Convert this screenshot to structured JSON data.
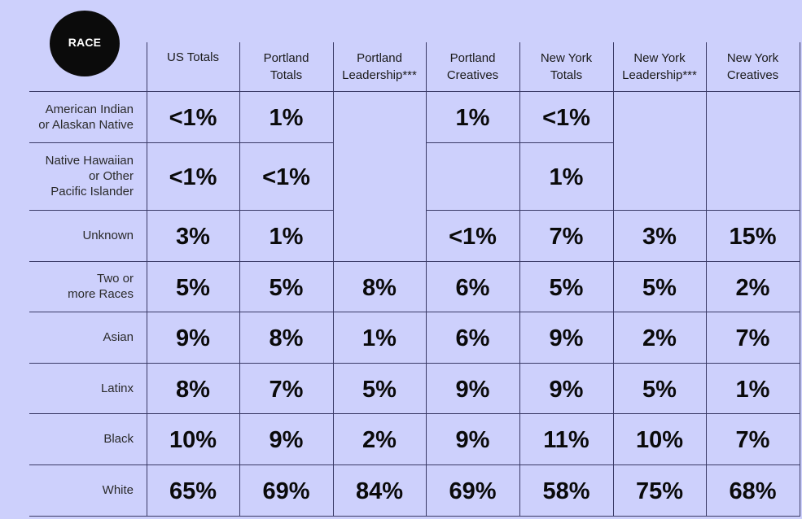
{
  "badge": {
    "label": "RACE"
  },
  "columns": [
    {
      "line1": "US Totals",
      "line2": ""
    },
    {
      "line1": "Portland",
      "line2": "Totals"
    },
    {
      "line1": "Portland",
      "line2": "Leadership***"
    },
    {
      "line1": "Portland",
      "line2": "Creatives"
    },
    {
      "line1": "New York",
      "line2": "Totals"
    },
    {
      "line1": "New York",
      "line2": "Leadership***"
    },
    {
      "line1": "New York",
      "line2": "Creatives"
    }
  ],
  "rows": [
    {
      "label": [
        "American Indian",
        "or Alaskan Native"
      ]
    },
    {
      "label": [
        "Native Hawaiian",
        "or Other",
        "Pacific Islander"
      ]
    },
    {
      "label": [
        "Unknown"
      ]
    },
    {
      "label": [
        "Two or",
        "more Races"
      ]
    },
    {
      "label": [
        "Asian"
      ]
    },
    {
      "label": [
        "Latinx"
      ]
    },
    {
      "label": [
        "Black"
      ]
    },
    {
      "label": [
        "White"
      ]
    }
  ],
  "cells": [
    {
      "row": 0,
      "col": 0,
      "value": "<1%"
    },
    {
      "row": 0,
      "col": 1,
      "value": "1%"
    },
    {
      "row": 0,
      "col": 3,
      "value": "1%"
    },
    {
      "row": 0,
      "col": 4,
      "value": "<1%"
    },
    {
      "row": 1,
      "col": 0,
      "value": "<1%"
    },
    {
      "row": 1,
      "col": 1,
      "value": "<1%"
    },
    {
      "row": 1,
      "col": 4,
      "value": "1%"
    },
    {
      "row": 2,
      "col": 0,
      "value": "3%"
    },
    {
      "row": 2,
      "col": 1,
      "value": "1%"
    },
    {
      "row": 2,
      "col": 3,
      "value": "<1%"
    },
    {
      "row": 2,
      "col": 4,
      "value": "7%"
    },
    {
      "row": 2,
      "col": 5,
      "value": "3%"
    },
    {
      "row": 2,
      "col": 6,
      "value": "15%"
    },
    {
      "row": 3,
      "col": 0,
      "value": "5%"
    },
    {
      "row": 3,
      "col": 1,
      "value": "5%"
    },
    {
      "row": 3,
      "col": 2,
      "value": "8%"
    },
    {
      "row": 3,
      "col": 3,
      "value": "6%"
    },
    {
      "row": 3,
      "col": 4,
      "value": "5%"
    },
    {
      "row": 3,
      "col": 5,
      "value": "5%"
    },
    {
      "row": 3,
      "col": 6,
      "value": "2%"
    },
    {
      "row": 4,
      "col": 0,
      "value": "9%"
    },
    {
      "row": 4,
      "col": 1,
      "value": "8%"
    },
    {
      "row": 4,
      "col": 2,
      "value": "1%"
    },
    {
      "row": 4,
      "col": 3,
      "value": "6%"
    },
    {
      "row": 4,
      "col": 4,
      "value": "9%"
    },
    {
      "row": 4,
      "col": 5,
      "value": "2%"
    },
    {
      "row": 4,
      "col": 6,
      "value": "7%"
    },
    {
      "row": 5,
      "col": 0,
      "value": "8%"
    },
    {
      "row": 5,
      "col": 1,
      "value": "7%"
    },
    {
      "row": 5,
      "col": 2,
      "value": "5%"
    },
    {
      "row": 5,
      "col": 3,
      "value": "9%"
    },
    {
      "row": 5,
      "col": 4,
      "value": "9%"
    },
    {
      "row": 5,
      "col": 5,
      "value": "5%"
    },
    {
      "row": 5,
      "col": 6,
      "value": "1%"
    },
    {
      "row": 6,
      "col": 0,
      "value": "10%"
    },
    {
      "row": 6,
      "col": 1,
      "value": "9%"
    },
    {
      "row": 6,
      "col": 2,
      "value": "2%"
    },
    {
      "row": 6,
      "col": 3,
      "value": "9%"
    },
    {
      "row": 6,
      "col": 4,
      "value": "11%"
    },
    {
      "row": 6,
      "col": 5,
      "value": "10%"
    },
    {
      "row": 6,
      "col": 6,
      "value": "7%"
    },
    {
      "row": 7,
      "col": 0,
      "value": "65%"
    },
    {
      "row": 7,
      "col": 1,
      "value": "69%"
    },
    {
      "row": 7,
      "col": 2,
      "value": "84%"
    },
    {
      "row": 7,
      "col": 3,
      "value": "69%"
    },
    {
      "row": 7,
      "col": 4,
      "value": "58%"
    },
    {
      "row": 7,
      "col": 5,
      "value": "75%"
    },
    {
      "row": 7,
      "col": 6,
      "value": "68%"
    }
  ],
  "colors": {
    "background": "#cdd0fc",
    "grid": "#3a3a66",
    "badge": "#0b0b0b",
    "text": "#0a0a0a"
  }
}
